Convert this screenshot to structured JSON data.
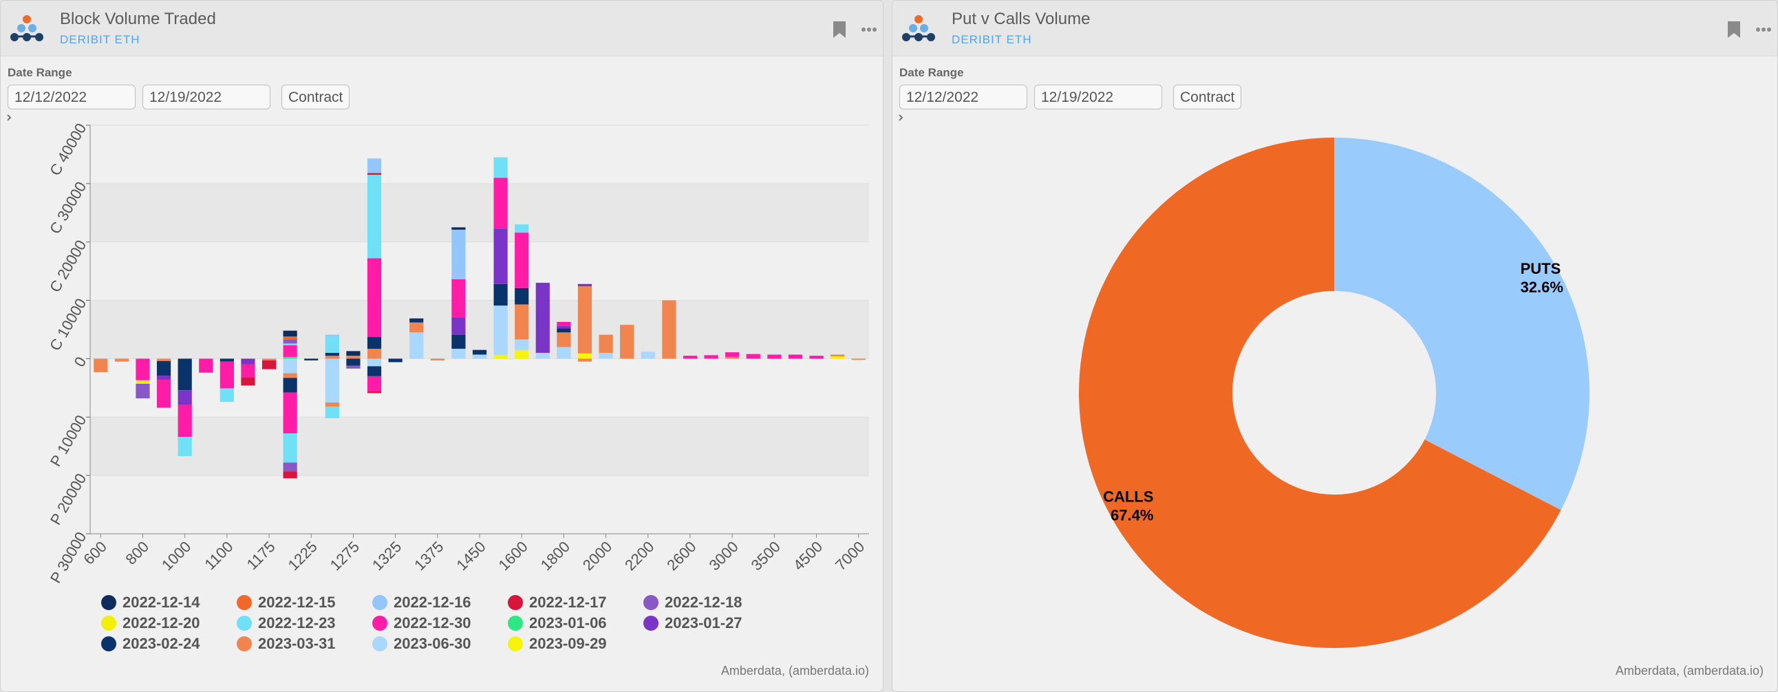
{
  "panels": [
    {
      "title": "Block Volume Traded",
      "source": "DERIBIT ETH",
      "date_range_label": "Date Range",
      "start_date": "12/12/2022",
      "end_date": "12/19/2022",
      "contract_button": "Contract",
      "credit": "Amberdata, (amberdata.io)"
    },
    {
      "title": "Put v Calls Volume",
      "source": "DERIBIT ETH",
      "date_range_label": "Date Range",
      "start_date": "12/12/2022",
      "end_date": "12/19/2022",
      "contract_button": "Contract",
      "credit": "Amberdata, (amberdata.io)"
    }
  ],
  "chart_data": [
    {
      "type": "bar",
      "stacked": true,
      "grid": true,
      "legend": "bottom",
      "categories": [
        "600",
        null,
        "800",
        null,
        "1000",
        null,
        "1100",
        null,
        "1175",
        null,
        "1225",
        null,
        "1275",
        null,
        "1325",
        null,
        "1375",
        null,
        "1450",
        null,
        "1600",
        null,
        "1800",
        null,
        "2000",
        null,
        "2200",
        null,
        "2600",
        null,
        "3000",
        null,
        "3500",
        null,
        "4500",
        null,
        "7000"
      ],
      "ylim": [
        -30000,
        40000
      ],
      "yticks": [
        {
          "value": -30000,
          "label": "P 30000"
        },
        {
          "value": -20000,
          "label": "P 20000"
        },
        {
          "value": -10000,
          "label": "P 10000"
        },
        0,
        {
          "value": 10000,
          "label": "C 10000"
        },
        {
          "value": 20000,
          "label": "C 20000"
        },
        {
          "value": 30000,
          "label": "C 30000"
        },
        {
          "value": 40000,
          "label": "C 40000"
        }
      ],
      "series": [
        {
          "name": "2022-12-14",
          "color": "#0e2c5c",
          "values": [
            null,
            null,
            null,
            null,
            null,
            null,
            null,
            null,
            null,
            1000,
            null,
            null,
            800,
            null,
            null,
            null,
            null,
            400,
            null,
            null,
            null,
            null,
            null,
            null,
            null,
            null,
            null,
            null,
            null,
            null,
            null,
            null,
            null,
            null,
            null,
            null,
            null
          ]
        },
        {
          "name": "2022-12-15",
          "color": "#f0692a",
          "values": [
            null,
            null,
            null,
            null,
            null,
            null,
            null,
            null,
            null,
            500,
            null,
            null,
            null,
            null,
            null,
            null,
            null,
            null,
            null,
            null,
            null,
            null,
            null,
            null,
            null,
            null,
            null,
            null,
            null,
            null,
            null,
            null,
            null,
            null,
            null,
            null,
            null
          ]
        },
        {
          "name": "2022-12-16",
          "color": "#93c6fa",
          "values": [
            null,
            null,
            null,
            null,
            null,
            null,
            null,
            null,
            null,
            null,
            null,
            300,
            null,
            2500,
            null,
            null,
            null,
            8500,
            null,
            null,
            null,
            null,
            null,
            null,
            null,
            null,
            null,
            null,
            null,
            null,
            null,
            null,
            null,
            null,
            null,
            null,
            null
          ]
        },
        {
          "name": "2022-12-17",
          "color": "#d8163b",
          "values": [
            null,
            null,
            null,
            null,
            null,
            null,
            null,
            null,
            null,
            null,
            null,
            null,
            null,
            300,
            null,
            null,
            null,
            null,
            null,
            null,
            null,
            null,
            null,
            null,
            null,
            null,
            null,
            null,
            null,
            null,
            null,
            null,
            null,
            null,
            null,
            null,
            null
          ],
          "put_values": [
            null,
            null,
            null,
            null,
            null,
            null,
            null,
            -1400,
            -1500,
            -1200,
            null,
            null,
            null,
            -300,
            null,
            null,
            null,
            null,
            null,
            null,
            null,
            null,
            null,
            null,
            null,
            null,
            null,
            null,
            null,
            null,
            null,
            null,
            null,
            null,
            null,
            null,
            null
          ]
        },
        {
          "name": "2022-12-18",
          "color": "#8758c6",
          "values": [
            null,
            null,
            null,
            null,
            null,
            null,
            null,
            null,
            null,
            700,
            null,
            null,
            null,
            null,
            null,
            null,
            null,
            null,
            null,
            null,
            null,
            null,
            null,
            null,
            null,
            null,
            null,
            null,
            null,
            null,
            null,
            null,
            null,
            null,
            null,
            null,
            null
          ],
          "put_values": [
            null,
            null,
            -2500,
            null,
            null,
            null,
            null,
            null,
            null,
            -1500,
            null,
            null,
            -500,
            null,
            null,
            null,
            null,
            null,
            null,
            null,
            null,
            null,
            null,
            null,
            null,
            null,
            null,
            null,
            null,
            null,
            null,
            null,
            null,
            null,
            null,
            null,
            null
          ]
        },
        {
          "name": "2022-12-20",
          "color": "#f3ef0c",
          "put_values": [
            null,
            null,
            -600,
            null,
            null,
            null,
            null,
            null,
            null,
            null,
            null,
            null,
            null,
            null,
            null,
            null,
            null,
            null,
            null,
            null,
            null,
            null,
            null,
            null,
            null,
            null,
            null,
            null,
            null,
            null,
            null,
            null,
            null,
            null,
            null,
            null,
            null
          ]
        },
        {
          "name": "2022-12-23",
          "color": "#6fe0f5",
          "values": [
            null,
            null,
            null,
            null,
            null,
            null,
            null,
            null,
            null,
            300,
            null,
            2800,
            null,
            14300,
            null,
            null,
            null,
            null,
            null,
            3500,
            1400,
            null,
            null,
            null,
            null,
            null,
            null,
            null,
            null,
            null,
            null,
            null,
            null,
            null,
            null,
            null,
            null
          ],
          "put_values": [
            null,
            null,
            null,
            null,
            -3300,
            null,
            -2300,
            null,
            null,
            -5000,
            null,
            -2000,
            null,
            null,
            null,
            null,
            null,
            null,
            null,
            null,
            null,
            null,
            null,
            null,
            null,
            null,
            null,
            null,
            null,
            null,
            null,
            null,
            null,
            null,
            null,
            null,
            null
          ]
        },
        {
          "name": "2022-12-30",
          "color": "#ff1ca7",
          "values": [
            null,
            null,
            null,
            null,
            null,
            null,
            null,
            null,
            null,
            2000,
            null,
            null,
            null,
            13500,
            null,
            null,
            null,
            6500,
            null,
            8700,
            9500,
            null,
            700,
            null,
            null,
            null,
            null,
            null,
            500,
            600,
            800,
            800,
            700,
            700,
            500,
            null,
            null
          ],
          "put_values": [
            null,
            null,
            -3700,
            -4800,
            -5500,
            -2400,
            -4600,
            -2200,
            null,
            -7000,
            null,
            null,
            null,
            -2600,
            null,
            null,
            null,
            null,
            null,
            null,
            null,
            null,
            null,
            null,
            null,
            null,
            null,
            null,
            null,
            null,
            null,
            null,
            null,
            null,
            null,
            null,
            null
          ]
        },
        {
          "name": "2023-01-06",
          "color": "#2fe684",
          "values": [
            null,
            null,
            null,
            null,
            null,
            null,
            null,
            null,
            null,
            300,
            null,
            null,
            null,
            null,
            null,
            null,
            null,
            null,
            null,
            null,
            null,
            null,
            null,
            null,
            null,
            null,
            null,
            null,
            null,
            null,
            null,
            null,
            null,
            null,
            null,
            null,
            null
          ]
        },
        {
          "name": "2023-01-27",
          "color": "#7a34c8",
          "values": [
            null,
            null,
            null,
            null,
            null,
            null,
            null,
            null,
            null,
            null,
            null,
            null,
            null,
            null,
            null,
            null,
            null,
            3000,
            null,
            9500,
            null,
            12000,
            400,
            400,
            null,
            null,
            null,
            null,
            null,
            null,
            null,
            null,
            null,
            null,
            null,
            null,
            null
          ],
          "put_values": [
            null,
            null,
            null,
            -700,
            -2500,
            null,
            null,
            -1000,
            null,
            null,
            null,
            null,
            null,
            null,
            null,
            null,
            null,
            null,
            null,
            null,
            null,
            null,
            null,
            null,
            null,
            null,
            null,
            null,
            null,
            null,
            null,
            null,
            null,
            null,
            null,
            null,
            null
          ]
        },
        {
          "name": "2023-02-24",
          "color": "#0b336b",
          "values": [
            null,
            null,
            null,
            null,
            null,
            null,
            null,
            null,
            null,
            null,
            null,
            500,
            null,
            2000,
            null,
            700,
            null,
            2400,
            800,
            3700,
            2800,
            null,
            700,
            null,
            null,
            null,
            null,
            null,
            null,
            null,
            null,
            null,
            null,
            null,
            null,
            null,
            null
          ],
          "put_values": [
            null,
            null,
            null,
            -2500,
            -5400,
            null,
            -500,
            null,
            null,
            -2500,
            -300,
            null,
            -1200,
            -1700,
            -600,
            null,
            null,
            null,
            null,
            null,
            null,
            null,
            null,
            null,
            null,
            null,
            null,
            null,
            null,
            null,
            null,
            null,
            null,
            null,
            null,
            null,
            null
          ]
        },
        {
          "name": "2023-03-31",
          "color": "#f08550",
          "values": [
            null,
            null,
            null,
            null,
            null,
            null,
            null,
            null,
            null,
            null,
            null,
            500,
            500,
            1700,
            null,
            1700,
            null,
            null,
            null,
            null,
            6000,
            null,
            2500,
            11500,
            3100,
            5800,
            null,
            10000,
            null,
            null,
            300,
            null,
            null,
            null,
            null,
            300,
            null
          ],
          "put_values": [
            -2300,
            -500,
            null,
            -400,
            null,
            null,
            null,
            null,
            -300,
            -800,
            null,
            -700,
            null,
            null,
            null,
            null,
            -300,
            null,
            null,
            null,
            null,
            null,
            null,
            -500,
            null,
            null,
            null,
            null,
            null,
            null,
            null,
            null,
            null,
            null,
            null,
            null,
            -200
          ]
        },
        {
          "name": "2023-06-30",
          "color": "#aad7fc",
          "values": [
            null,
            null,
            null,
            null,
            null,
            null,
            null,
            null,
            null,
            null,
            null,
            null,
            null,
            null,
            null,
            4500,
            null,
            1700,
            700,
            8500,
            1800,
            1000,
            2000,
            null,
            1000,
            null,
            1200,
            null,
            null,
            null,
            null,
            null,
            null,
            null,
            null,
            null,
            null
          ],
          "put_values": [
            null,
            null,
            null,
            null,
            null,
            null,
            null,
            null,
            null,
            -2500,
            null,
            -7500,
            null,
            -1300,
            null,
            null,
            null,
            null,
            null,
            null,
            null,
            null,
            null,
            null,
            null,
            null,
            null,
            null,
            null,
            null,
            null,
            null,
            null,
            null,
            null,
            null,
            null
          ]
        },
        {
          "name": "2023-09-29",
          "color": "#f7f40c",
          "values": [
            null,
            null,
            null,
            null,
            null,
            null,
            null,
            null,
            null,
            null,
            null,
            null,
            null,
            null,
            null,
            null,
            null,
            null,
            null,
            600,
            1500,
            null,
            null,
            900,
            null,
            null,
            null,
            null,
            null,
            null,
            null,
            null,
            null,
            null,
            null,
            400,
            null
          ]
        }
      ]
    },
    {
      "type": "donut",
      "categories": [
        "PUTS",
        "CALLS"
      ],
      "values": [
        32.6,
        67.4
      ],
      "value_labels": [
        "32.6%",
        "67.4%"
      ],
      "colors": [
        "#99cbfd",
        "#ef6924"
      ]
    }
  ]
}
